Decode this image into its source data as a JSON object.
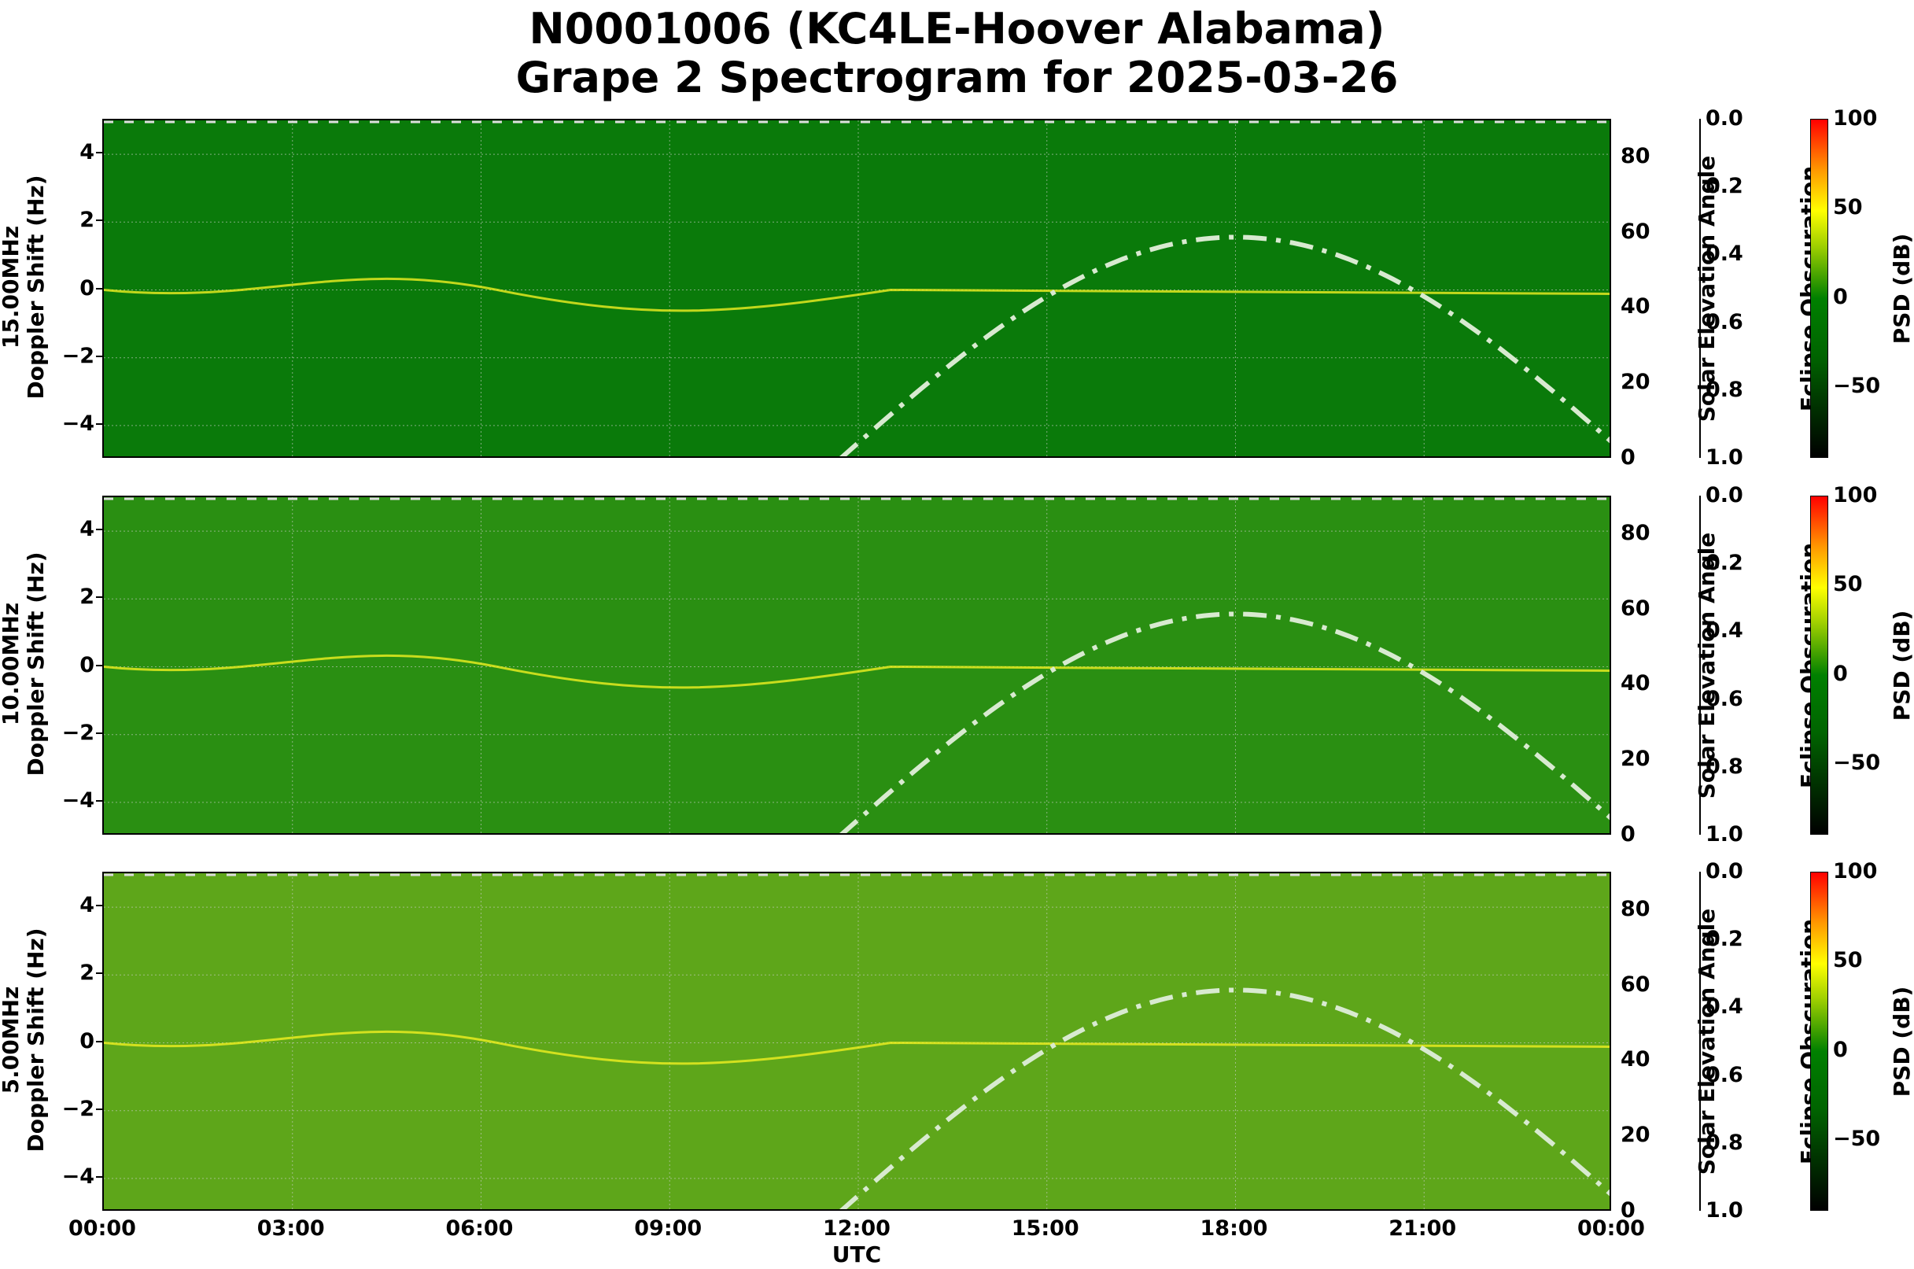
{
  "title": {
    "line1": "N0001006 (KC4LE-Hoover Alabama)",
    "line2": "Grape 2 Spectrogram for 2025-03-26"
  },
  "axes": {
    "xlabel": "UTC",
    "xticks": [
      "00:00",
      "03:00",
      "06:00",
      "09:00",
      "12:00",
      "15:00",
      "18:00",
      "21:00",
      "00:00"
    ],
    "yticks_left": [
      "4",
      "2",
      "0",
      "−2",
      "−4"
    ],
    "yticks_right": [
      "80",
      "60",
      "40",
      "20",
      "0"
    ],
    "yticks_eclipse": [
      "0.0",
      "0.2",
      "0.4",
      "0.6",
      "0.8",
      "1.0"
    ],
    "cbar_ticks": [
      "100",
      "50",
      "0",
      "−50"
    ],
    "right_label": "Solar Elevation Angle",
    "eclipse_label": "Eclipse Obscuration",
    "cbar_label": "PSD (dB)"
  },
  "panels": [
    {
      "freq_label": "15.00MHz",
      "ylabel": "Doppler Shift (Hz)"
    },
    {
      "freq_label": "10.00MHz",
      "ylabel": "Doppler Shift (Hz)"
    },
    {
      "freq_label": "5.00MHz",
      "ylabel": "Doppler Shift (Hz)"
    }
  ],
  "colors": {
    "bg_15": "#0a7a0a",
    "bg_10": "#2a8f12",
    "bg_5": "#5ea61a",
    "signal": "#f0f020",
    "solar_curve": "#d8ead0"
  },
  "chart_data": {
    "type": "heatmap",
    "title": "N0001006 (KC4LE-Hoover Alabama) Grape 2 Spectrogram for 2025-03-26",
    "xlabel": "UTC",
    "ylabel": "Doppler Shift (Hz)",
    "xlim": [
      "00:00",
      "24:00"
    ],
    "ylim": [
      -5,
      5
    ],
    "right_ylabel": "Solar Elevation Angle",
    "right_ylim": [
      0,
      90
    ],
    "eclipse_ylabel": "Eclipse Obscuration",
    "eclipse_ylim": [
      1.0,
      0.0
    ],
    "colorbar": {
      "label": "PSD (dB)",
      "range": [
        -90,
        100
      ],
      "ticks": [
        -50,
        0,
        50,
        100
      ],
      "colormap": "black-green-yellow-red"
    },
    "grid": true,
    "panels": [
      "15.00MHz",
      "10.00MHz",
      "5.00MHz"
    ],
    "solar_elevation": {
      "x_hours": [
        11.7,
        12,
        13,
        14,
        15,
        16,
        17,
        18,
        19,
        20,
        21,
        22,
        23,
        24
      ],
      "y_deg": [
        0,
        3,
        16,
        29,
        41,
        51,
        57,
        59,
        57,
        51,
        41,
        29,
        16,
        0
      ],
      "peak": {
        "time": "18:00",
        "elevation": 59
      }
    }
  }
}
